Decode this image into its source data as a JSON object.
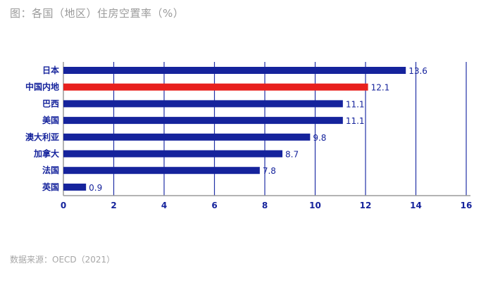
{
  "title": "图：各国（地区）住房空置率（%）",
  "source": "数据来源：OECD（2021）",
  "colors": {
    "bar": "#15239c",
    "highlight": "#e8201d",
    "grid": "#2231a6",
    "text": "#15239c",
    "axis": "#9a9a9a"
  },
  "chart_data": {
    "type": "bar",
    "orientation": "horizontal",
    "categories": [
      "日本",
      "中国内地",
      "巴西",
      "美国",
      "澳大利亚",
      "加拿大",
      "法国",
      "英国"
    ],
    "values": [
      13.6,
      12.1,
      11.1,
      11.1,
      9.8,
      8.7,
      7.8,
      0.9
    ],
    "value_labels": [
      "13.6",
      "12.1",
      "11.1",
      "11.1",
      "9.8",
      "8.7",
      "7.8",
      "0.9"
    ],
    "highlight": "中国内地",
    "xlim": [
      0,
      16
    ],
    "xticks": [
      "0",
      "2",
      "4",
      "6",
      "8",
      "10",
      "12",
      "14",
      "16"
    ],
    "grid": true
  }
}
